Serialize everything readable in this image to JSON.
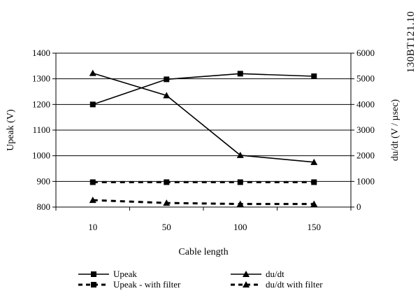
{
  "figure_code": "130BT121.10",
  "chart_data": {
    "type": "line",
    "categories": [
      "10",
      "50",
      "100",
      "150"
    ],
    "xlabel": "Cable length",
    "ylabel_left": "Upeak (V)",
    "ylabel_right": "du/dt (V / µsec)",
    "ylim_left": [
      800,
      1400
    ],
    "yticks_left": [
      800,
      900,
      1000,
      1100,
      1200,
      1300,
      1400
    ],
    "ylim_right": [
      0,
      6000
    ],
    "yticks_right": [
      0,
      1000,
      2000,
      3000,
      4000,
      5000,
      6000
    ],
    "grid": true,
    "legend_position": "bottom",
    "series": [
      {
        "name": "Upeak",
        "axis": "left",
        "style": "solid",
        "marker": "square",
        "values": [
          1200,
          1298,
          1320,
          1310
        ]
      },
      {
        "name": "du/dt",
        "axis": "right",
        "style": "solid",
        "marker": "triangle",
        "values": [
          5220,
          4350,
          2020,
          1750
        ]
      },
      {
        "name": "Upeak - with filter",
        "axis": "left",
        "style": "dashed",
        "marker": "square",
        "values": [
          897,
          897,
          897,
          897
        ]
      },
      {
        "name": "du/dt with filter",
        "axis": "right",
        "style": "dashed",
        "marker": "triangle",
        "values": [
          270,
          160,
          120,
          120
        ]
      }
    ]
  }
}
